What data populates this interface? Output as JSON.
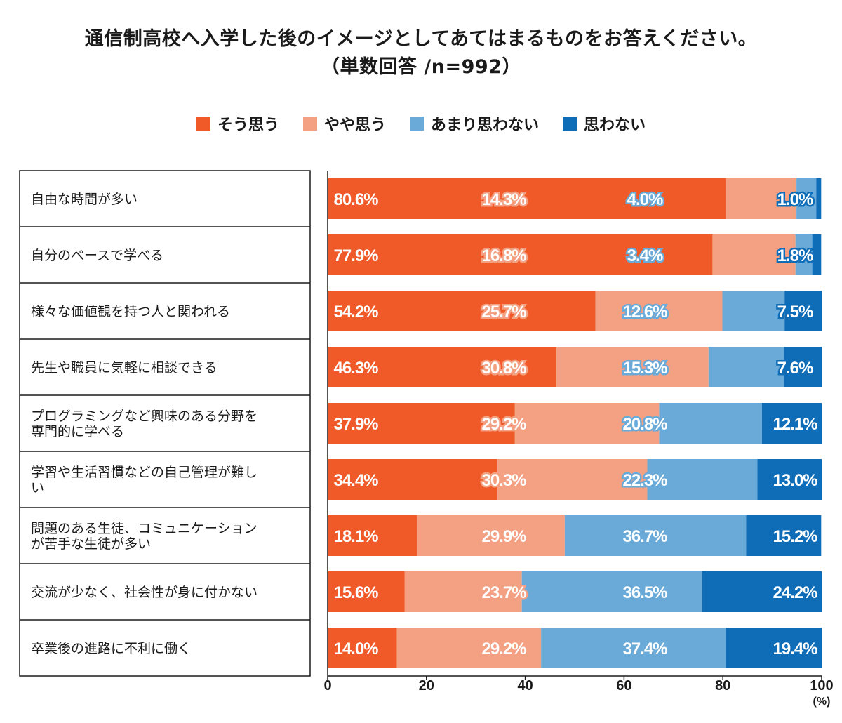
{
  "title": "通信制高校へ入学した後のイメージとしてあてはまるものをお答えください。",
  "subtitle": "（単数回答 /n=992）",
  "colors": {
    "strong_agree": "#f05a28",
    "agree": "#f4a082",
    "disagree": "#6aaad8",
    "strong_disagree": "#0f6db8"
  },
  "chart_data": {
    "type": "bar",
    "orientation": "horizontal-stacked-100",
    "categories": [
      "自由な時間が多い",
      "自分のペースで学べる",
      "様々な価値観を持つ人と関われる",
      "先生や職員に気軽に相談できる",
      "プログラミングなど興味のある分野を\n専門的に学べる",
      "学習や生活習慣などの自己管理が難し\nい",
      "問題のある生徒、コミュニケーション\nが苦手な生徒が多い",
      "交流が少なく、社会性が身に付かない",
      "卒業後の進路に不利に働く"
    ],
    "series": [
      {
        "name": "そう思う",
        "values": [
          80.6,
          77.9,
          54.2,
          46.3,
          37.9,
          34.4,
          18.1,
          15.6,
          14.0
        ]
      },
      {
        "name": "やや思う",
        "values": [
          14.3,
          16.8,
          25.7,
          30.8,
          29.2,
          30.3,
          29.9,
          23.7,
          29.2
        ]
      },
      {
        "name": "あまり思わない",
        "values": [
          4.0,
          3.4,
          12.6,
          15.3,
          20.8,
          22.3,
          36.7,
          36.5,
          37.4
        ]
      },
      {
        "name": "思わない",
        "values": [
          1.0,
          1.8,
          7.5,
          7.6,
          12.1,
          13.0,
          15.2,
          24.2,
          19.4
        ]
      }
    ],
    "xlim": [
      0,
      100
    ],
    "xticks": [
      "0",
      "20",
      "40",
      "60",
      "80",
      "100"
    ],
    "xunit": "(%)",
    "legend_position": "top"
  }
}
